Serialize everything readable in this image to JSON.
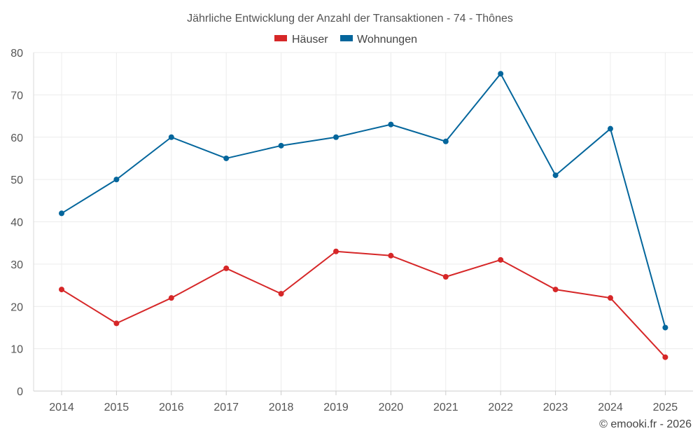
{
  "chart_data": {
    "type": "line",
    "title": "Jährliche Entwicklung der Anzahl der Transaktionen - 74 - Thônes",
    "categories": [
      "2014",
      "2015",
      "2016",
      "2017",
      "2018",
      "2019",
      "2020",
      "2021",
      "2022",
      "2023",
      "2024",
      "2025"
    ],
    "series": [
      {
        "name": "Häuser",
        "color": "#d62728",
        "values": [
          24,
          16,
          22,
          29,
          23,
          33,
          32,
          27,
          31,
          24,
          22,
          8
        ]
      },
      {
        "name": "Wohnungen",
        "color": "#04669c",
        "values": [
          42,
          50,
          60,
          55,
          58,
          60,
          63,
          59,
          75,
          51,
          62,
          15
        ]
      }
    ],
    "ylim": [
      0,
      80
    ],
    "yticks": [
      0,
      10,
      20,
      30,
      40,
      50,
      60,
      70,
      80
    ],
    "grid": true,
    "legend_position": "top-center",
    "xlabel": "",
    "ylabel": ""
  },
  "credit": "© emooki.fr - 2026"
}
